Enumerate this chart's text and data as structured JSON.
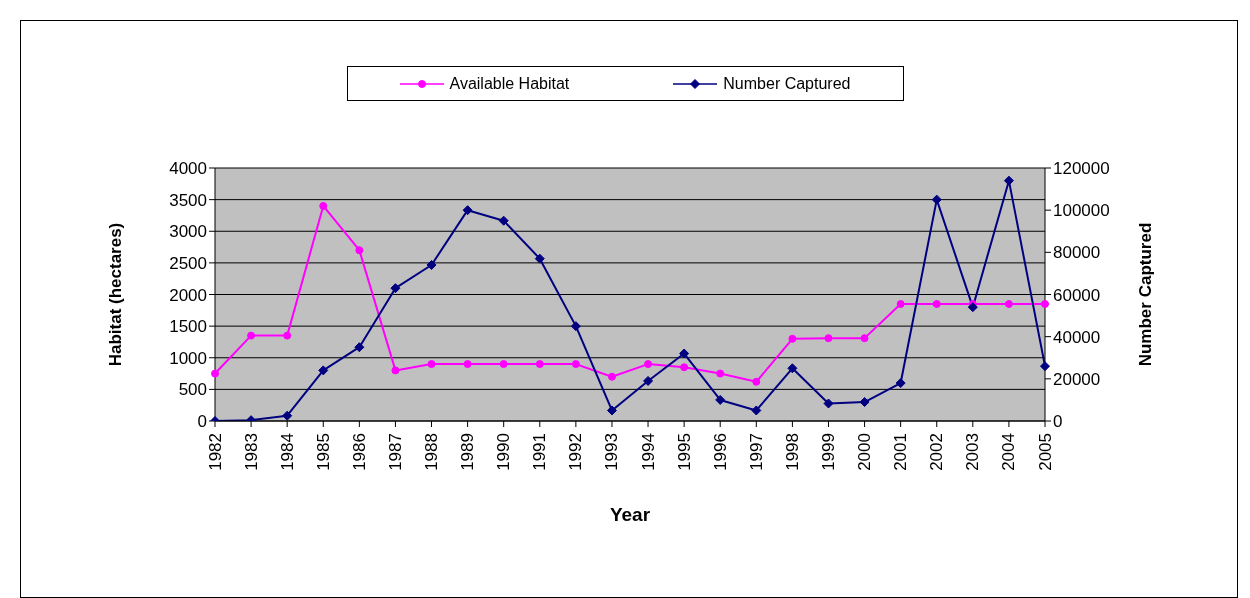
{
  "chart_data": {
    "type": "line",
    "xlabel": "Year",
    "ylabel": "Habitat (hectares)",
    "y2label": "Number Captured",
    "categories": [
      "1982",
      "1983",
      "1984",
      "1985",
      "1986",
      "1987",
      "1988",
      "1989",
      "1990",
      "1991",
      "1992",
      "1993",
      "1994",
      "1995",
      "1996",
      "1997",
      "1998",
      "1999",
      "2000",
      "2001",
      "2002",
      "2003",
      "2004",
      "2005"
    ],
    "series": [
      {
        "name": "Available Habitat",
        "color": "#ff00ff",
        "marker": "circle",
        "values": [
          750,
          1350,
          1350,
          3400,
          2700,
          800,
          900,
          900,
          900,
          900,
          900,
          700,
          900,
          850,
          750,
          620,
          1300,
          1310,
          1310,
          1850,
          1850,
          1850,
          1850,
          1850
        ]
      },
      {
        "name": "Number Captured",
        "color": "#000080",
        "marker": "diamond",
        "axis": "y2",
        "values": [
          0,
          400,
          2500,
          24000,
          35000,
          63000,
          74000,
          100000,
          95000,
          77000,
          45000,
          5000,
          19000,
          32000,
          10000,
          5000,
          25000,
          8300,
          9000,
          18000,
          105000,
          54000,
          114000,
          26000
        ]
      }
    ],
    "ylim": [
      0,
      4000
    ],
    "yticks": [
      0,
      500,
      1000,
      1500,
      2000,
      2500,
      3000,
      3500,
      4000
    ],
    "y2lim": [
      0,
      120000
    ],
    "y2ticks": [
      0,
      20000,
      40000,
      60000,
      80000,
      100000,
      120000
    ],
    "grid": "y",
    "legend": "top"
  }
}
